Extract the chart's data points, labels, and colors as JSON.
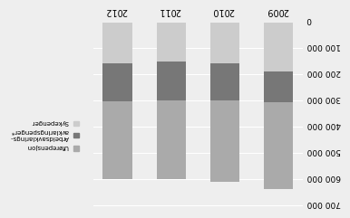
{
  "categories": [
    "2009",
    "2010",
    "2011",
    "2012"
  ],
  "series": {
    "Uforepensjon": [
      330000,
      310000,
      300000,
      295000
    ],
    "Arbeidsavklaringspenger": [
      120000,
      140000,
      145000,
      145000
    ],
    "Sykepenger": [
      185000,
      155000,
      150000,
      155000
    ]
  },
  "colors": {
    "Uforepensjon": "#aaaaaa",
    "Arbeidsavklaringspenger": "#777777",
    "Sykepenger": "#cccccc"
  },
  "legend_labels_display": [
    "Üførepensjon",
    "Arbeidsavklarings-\navklaringspenger*",
    "Sykepenger"
  ],
  "ylim": [
    0,
    700000
  ],
  "yticks": [
    0,
    100000,
    200000,
    300000,
    400000,
    500000,
    600000,
    700000
  ],
  "ytick_labels": [
    "0",
    "100 000",
    "200 000",
    "300 000",
    "400 000",
    "500 000",
    "600 000",
    "700 000"
  ],
  "background_color": "#eeeeee",
  "bar_width": 0.55
}
